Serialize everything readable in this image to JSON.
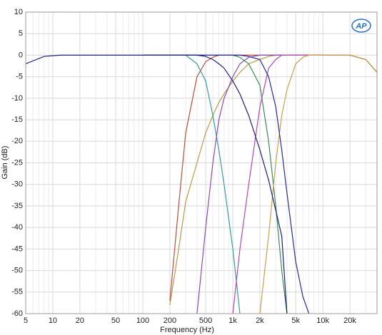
{
  "chart_data": {
    "type": "line",
    "x_label": "Frequency (Hz)",
    "y_label": "Gain (dB)",
    "logo": "AP",
    "x_log": true,
    "grid": true,
    "xlim": [
      5,
      40000
    ],
    "ylim": [
      -60,
      10
    ],
    "xticks": [
      5,
      10,
      20,
      50,
      100,
      200,
      500,
      {
        "value": 1000,
        "label": "1k"
      },
      {
        "value": 2000,
        "label": "2k"
      },
      {
        "value": 5000,
        "label": "5k"
      },
      {
        "value": 10000,
        "label": "10k"
      },
      {
        "value": 20000,
        "label": "20k"
      }
    ],
    "x_minor_ticks": [
      6,
      7,
      8,
      9,
      30,
      40,
      60,
      70,
      80,
      90,
      300,
      400,
      600,
      700,
      800,
      900,
      3000,
      4000,
      6000,
      7000,
      8000,
      9000,
      30000
    ],
    "yticks": [
      10,
      5,
      0,
      -5,
      -10,
      -15,
      -20,
      -25,
      -30,
      -35,
      -40,
      -45,
      -50,
      -55,
      -60
    ],
    "x": [
      5,
      8,
      12,
      100,
      200,
      250,
      300,
      400,
      500,
      600,
      700,
      800,
      1000,
      1200,
      1500,
      2000,
      2500,
      3000,
      3500,
      4000,
      5000,
      6000,
      7000,
      10000,
      20000,
      30000,
      40000
    ],
    "series": [
      {
        "color": "#b4503c",
        "values": [
          null,
          null,
          null,
          null,
          -57,
          -35,
          -18,
          -5,
          -1.5,
          -0.5,
          0,
          0,
          0,
          0,
          0,
          0,
          0,
          0,
          0,
          0,
          0,
          0,
          0,
          0,
          0,
          -1,
          -4
        ]
      },
      {
        "color": "#b89a4a",
        "values": [
          null,
          null,
          null,
          null,
          -58,
          -45,
          -34,
          -25,
          -18,
          -14,
          -11,
          -9,
          -6,
          -4,
          -2,
          -1,
          -0.3,
          0,
          0,
          0,
          0,
          0,
          0,
          0,
          0,
          -1,
          -4
        ]
      },
      {
        "color": "#3a9a9a",
        "values": [
          null,
          null,
          null,
          0,
          0,
          0,
          0,
          -2,
          -6,
          -14,
          -22,
          -30,
          -45,
          -60,
          null,
          null,
          null,
          null,
          null,
          null,
          null,
          null,
          null,
          null,
          null,
          null,
          null
        ]
      },
      {
        "color": "#8a4ab8",
        "values": [
          null,
          null,
          null,
          null,
          null,
          null,
          null,
          -60,
          -40,
          -25,
          -15,
          -10,
          -5,
          -2,
          -0.5,
          0,
          0,
          0,
          0,
          0,
          0,
          0,
          0,
          0,
          null,
          null,
          null
        ]
      },
      {
        "color": "#3a8a5a",
        "values": [
          null,
          null,
          null,
          0,
          0,
          0,
          0,
          0,
          0,
          0,
          0,
          0,
          0,
          -0.5,
          -2,
          -7,
          -20,
          -35,
          -50,
          -60,
          null,
          null,
          null,
          null,
          null,
          null,
          null
        ]
      },
      {
        "color": "#b04ab0",
        "values": [
          null,
          null,
          null,
          null,
          null,
          null,
          null,
          null,
          null,
          null,
          null,
          null,
          -60,
          -45,
          -30,
          -12,
          -3,
          -1,
          0,
          0,
          0,
          0,
          0,
          0,
          null,
          null,
          null
        ]
      },
      {
        "color": "#c8a050",
        "values": [
          null,
          null,
          null,
          null,
          null,
          null,
          null,
          null,
          null,
          null,
          null,
          null,
          null,
          null,
          null,
          -60,
          -42,
          -25,
          -14,
          -8,
          -2,
          -0.5,
          0,
          0,
          null,
          null,
          null
        ]
      },
      {
        "color": "#2a2a9a",
        "values": [
          null,
          null,
          null,
          0,
          0,
          0,
          0,
          0,
          0,
          0,
          0,
          0,
          0,
          0,
          -0.3,
          -1,
          -5,
          -12,
          -22,
          -32,
          -48,
          -56,
          -60,
          null,
          null,
          null,
          null
        ]
      },
      {
        "color": "#1f1f7c",
        "values": [
          -2,
          -0.3,
          0,
          0,
          0,
          0,
          0,
          0,
          -0.3,
          -1,
          -2,
          -3,
          -6,
          -9,
          -14,
          -22,
          -29,
          -36,
          -42,
          -60,
          null,
          null,
          null,
          null,
          null,
          null,
          null
        ]
      }
    ]
  }
}
